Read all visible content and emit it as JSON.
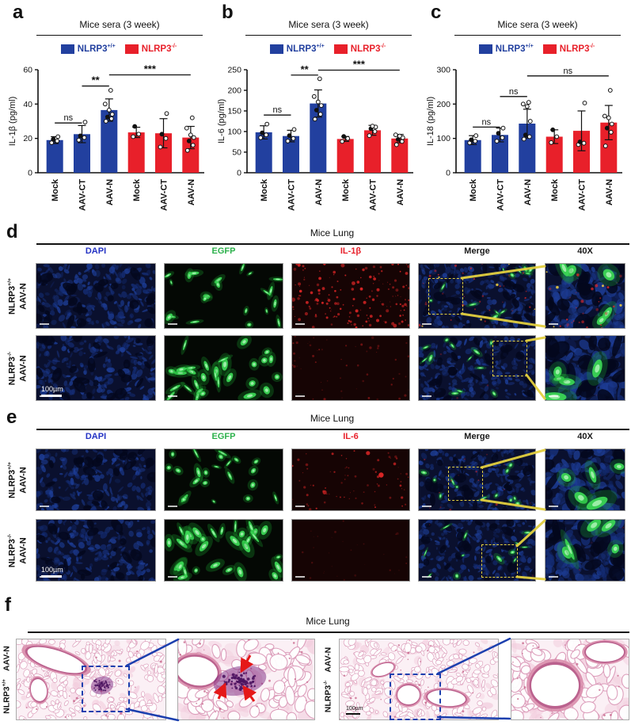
{
  "panels": {
    "a": "a",
    "b": "b",
    "c": "c",
    "d": "d",
    "e": "e",
    "f": "f"
  },
  "colors": {
    "wt_blue": "#22409f",
    "ko_red": "#e8202a",
    "yellow_box": "#e3cf3f",
    "blue_annot": "#1c3fae",
    "arrow_red": "#e51818",
    "axis_black": "#111111"
  },
  "legend": {
    "wt_base": "NLRP3",
    "wt_sup": "+/+",
    "ko_base": "NLRP3",
    "ko_sup": "-/-"
  },
  "chart_data": [
    {
      "id": "a",
      "type": "bar",
      "title": "Mice sera (3 week)",
      "ylabel": "IL-1β (pg/ml)",
      "ylim": [
        0,
        60
      ],
      "yticks": [
        0,
        20,
        40,
        60
      ],
      "categories": [
        "Mock",
        "AAV-CT",
        "AAV-N",
        "Mock",
        "AAV-CT",
        "AAV-N"
      ],
      "series_group": [
        "wt",
        "wt",
        "wt",
        "ko",
        "ko",
        "ko"
      ],
      "values": [
        19,
        22.5,
        36.5,
        23.5,
        23,
        20.5
      ],
      "errors": [
        2,
        5,
        6.5,
        3,
        8.5,
        6.5
      ],
      "points": [
        [
          17.5,
          18.5,
          19.5,
          21
        ],
        [
          19,
          20.5,
          21.5,
          29.5
        ],
        [
          30,
          31.5,
          32.5,
          34,
          36.5,
          40,
          48
        ],
        [
          21,
          22.5,
          27
        ],
        [
          15,
          20,
          22.5,
          34.5
        ],
        [
          13,
          16,
          18.5,
          20.5,
          22,
          26,
          32
        ]
      ],
      "significance": [
        {
          "x1": 0,
          "x2": 1,
          "label": "ns",
          "y": 29
        },
        {
          "x1": 1,
          "x2": 2,
          "label": "**",
          "y": 50.5
        },
        {
          "x1": 2,
          "x2": 5,
          "label": "***",
          "y": 57
        }
      ]
    },
    {
      "id": "b",
      "type": "bar",
      "title": "Mice sera (3 week)",
      "ylabel": "IL-6 (pg/ml)",
      "ylim": [
        0,
        250
      ],
      "yticks": [
        0,
        50,
        100,
        150,
        200,
        250
      ],
      "categories": [
        "Mock",
        "AAV-CT",
        "AAV-N",
        "Mock",
        "AAV-CT",
        "AAV-N"
      ],
      "series_group": [
        "wt",
        "wt",
        "wt",
        "ko",
        "ko",
        "ko"
      ],
      "values": [
        98,
        89,
        168,
        82,
        103,
        83
      ],
      "errors": [
        16,
        14,
        33,
        6,
        12,
        10
      ],
      "points": [
        [
          85,
          92,
          97,
          118
        ],
        [
          77,
          83,
          90,
          105
        ],
        [
          130,
          142,
          152,
          163,
          172,
          185,
          228
        ],
        [
          76,
          83,
          88
        ],
        [
          90,
          100,
          107,
          111,
          113
        ],
        [
          68,
          76,
          81,
          85,
          89,
          92
        ]
      ],
      "significance": [
        {
          "x1": 0,
          "x2": 1,
          "label": "ns",
          "y": 140
        },
        {
          "x1": 1,
          "x2": 2,
          "label": "**",
          "y": 237
        },
        {
          "x1": 2,
          "x2": 5,
          "label": "***",
          "y": 249
        }
      ]
    },
    {
      "id": "c",
      "type": "bar",
      "title": "Mice sera (3 week)",
      "ylabel": "IL-18 (pg/ml)",
      "ylim": [
        0,
        300
      ],
      "yticks": [
        0,
        100,
        200,
        300
      ],
      "categories": [
        "Mock",
        "AAV-CT",
        "AAV-N",
        "Mock",
        "AAV-CT",
        "AAV-N"
      ],
      "series_group": [
        "wt",
        "wt",
        "wt",
        "ko",
        "ko",
        "ko"
      ],
      "values": [
        95,
        110,
        143,
        105,
        122,
        146
      ],
      "errors": [
        13,
        20,
        42,
        20,
        58,
        50
      ],
      "points": [
        [
          87,
          92,
          96,
          108
        ],
        [
          92,
          102,
          115,
          130
        ],
        [
          98,
          105,
          110,
          150,
          193,
          200,
          205
        ],
        [
          88,
          105,
          125
        ],
        [
          82,
          86,
          90,
          203
        ],
        [
          78,
          118,
          130,
          142,
          160,
          165,
          240
        ]
      ],
      "significance": [
        {
          "x1": 0,
          "x2": 1,
          "label": "ns",
          "y": 133
        },
        {
          "x1": 1,
          "x2": 2,
          "label": "ns",
          "y": 222
        },
        {
          "x1": 2,
          "x2": 5,
          "label": "ns",
          "y": 282
        }
      ]
    }
  ],
  "micro_panels": [
    {
      "id": "d",
      "title": "Mice Lung",
      "columns": [
        {
          "label": "DAPI",
          "color": "#2433c4"
        },
        {
          "label": "EGFP",
          "color": "#2cb14b"
        },
        {
          "label": "IL-1β",
          "color": "#e8202a"
        },
        {
          "label": "Merge",
          "color": "#1a1a1a"
        },
        {
          "label": "40X",
          "color": "#1a1a1a"
        }
      ],
      "rows": [
        {
          "genotype_base": "NLRP3",
          "genotype_sup": "+/+",
          "treatment": "AAV-N",
          "cells": [
            {
              "kind": "dapi"
            },
            {
              "kind": "egfp",
              "density": "medium"
            },
            {
              "kind": "red",
              "intensity": "bright"
            },
            {
              "kind": "merge",
              "red": "some",
              "box": "left"
            },
            {
              "kind": "x40",
              "red": true
            }
          ]
        },
        {
          "genotype_base": "NLRP3",
          "genotype_sup": "-/-",
          "treatment": "AAV-N",
          "scalebar": "100µm",
          "cells": [
            {
              "kind": "dapi"
            },
            {
              "kind": "egfp",
              "density": "high"
            },
            {
              "kind": "red",
              "intensity": "dim"
            },
            {
              "kind": "merge",
              "red": "none",
              "box": "right"
            },
            {
              "kind": "x40",
              "red": false
            }
          ]
        }
      ]
    },
    {
      "id": "e",
      "title": "Mice Lung",
      "columns": [
        {
          "label": "DAPI",
          "color": "#2433c4"
        },
        {
          "label": "EGFP",
          "color": "#2cb14b"
        },
        {
          "label": "IL-6",
          "color": "#e8202a"
        },
        {
          "label": "Merge",
          "color": "#1a1a1a"
        },
        {
          "label": "40X",
          "color": "#1a1a1a"
        }
      ],
      "rows": [
        {
          "genotype_base": "NLRP3",
          "genotype_sup": "+/+",
          "treatment": "AAV-N",
          "cells": [
            {
              "kind": "dapi"
            },
            {
              "kind": "egfp",
              "density": "medium"
            },
            {
              "kind": "red",
              "intensity": "sparse"
            },
            {
              "kind": "merge",
              "red": "few",
              "box": "centerleft"
            },
            {
              "kind": "x40",
              "red": false
            }
          ]
        },
        {
          "genotype_base": "NLRP3",
          "genotype_sup": "-/-",
          "treatment": "AAV-N",
          "scalebar": "100µm",
          "cells": [
            {
              "kind": "dapi"
            },
            {
              "kind": "egfp",
              "density": "high"
            },
            {
              "kind": "red",
              "intensity": "faint"
            },
            {
              "kind": "merge",
              "red": "none",
              "box": "centerright"
            },
            {
              "kind": "x40",
              "red": false
            }
          ]
        }
      ]
    }
  ],
  "histology": {
    "id": "f",
    "title": "Mice Lung",
    "groups": [
      {
        "genotype_base": "NLRP3",
        "genotype_sup": "+/+",
        "treatment": "AAV-N",
        "images": [
          {
            "kind": "he",
            "variant": "f1low"
          },
          {
            "kind": "he",
            "variant": "f1zoom"
          }
        ]
      },
      {
        "genotype_base": "NLRP3",
        "genotype_sup": "-/-",
        "treatment": "AAV-N",
        "scalebar": "100µm",
        "images": [
          {
            "kind": "he",
            "variant": "f2low"
          },
          {
            "kind": "he",
            "variant": "f2zoom"
          }
        ]
      }
    ]
  }
}
